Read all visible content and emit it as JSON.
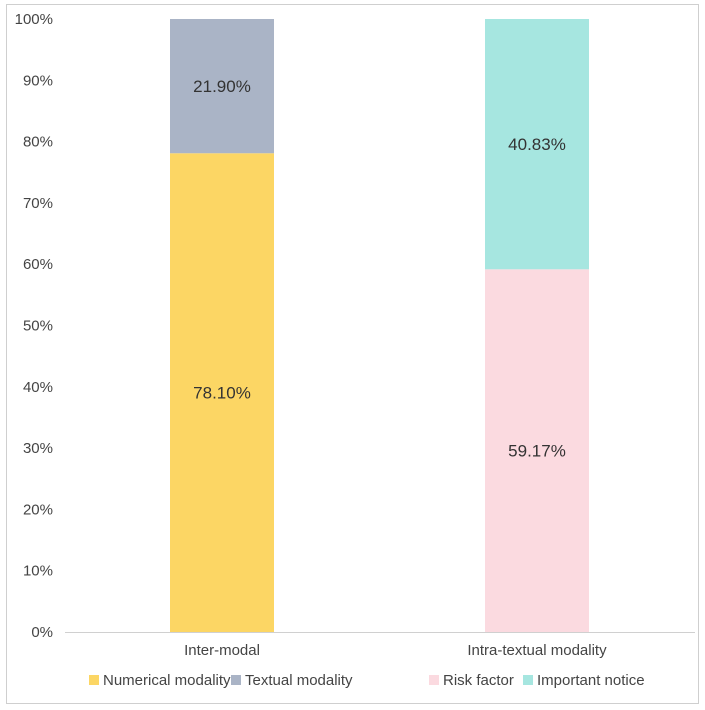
{
  "chart_data": {
    "type": "bar",
    "stacked": true,
    "title": "",
    "xlabel": "",
    "ylabel": "",
    "ylim": [
      0,
      100
    ],
    "yticks": [
      0,
      10,
      20,
      30,
      40,
      50,
      60,
      70,
      80,
      90,
      100
    ],
    "ytick_format": "%",
    "grid": false,
    "legend_position": "bottom",
    "categories": [
      "Inter-modal",
      "Intra-textual modality"
    ],
    "bars": [
      {
        "category": "Inter-modal",
        "segments": [
          {
            "name": "Numerical modality",
            "value": 78.1,
            "label": "78.10%",
            "color": "#FCD664"
          },
          {
            "name": "Textual modality",
            "value": 21.9,
            "label": "21.90%",
            "color": "#AAB4C6"
          }
        ]
      },
      {
        "category": "Intra-textual modality",
        "segments": [
          {
            "name": "Risk factor",
            "value": 59.17,
            "label": "59.17%",
            "color": "#FBDAE0"
          },
          {
            "name": "Important notice",
            "value": 40.83,
            "label": "40.83%",
            "color": "#A6E6E0"
          }
        ]
      }
    ],
    "legend": [
      {
        "name": "Numerical modality",
        "color": "#FCD664"
      },
      {
        "name": "Textual modality",
        "color": "#AAB4C6"
      },
      {
        "name": "Risk factor",
        "color": "#FBDAE0"
      },
      {
        "name": "Important notice",
        "color": "#A6E6E0"
      }
    ],
    "axis_color": "#d0d0d0"
  }
}
